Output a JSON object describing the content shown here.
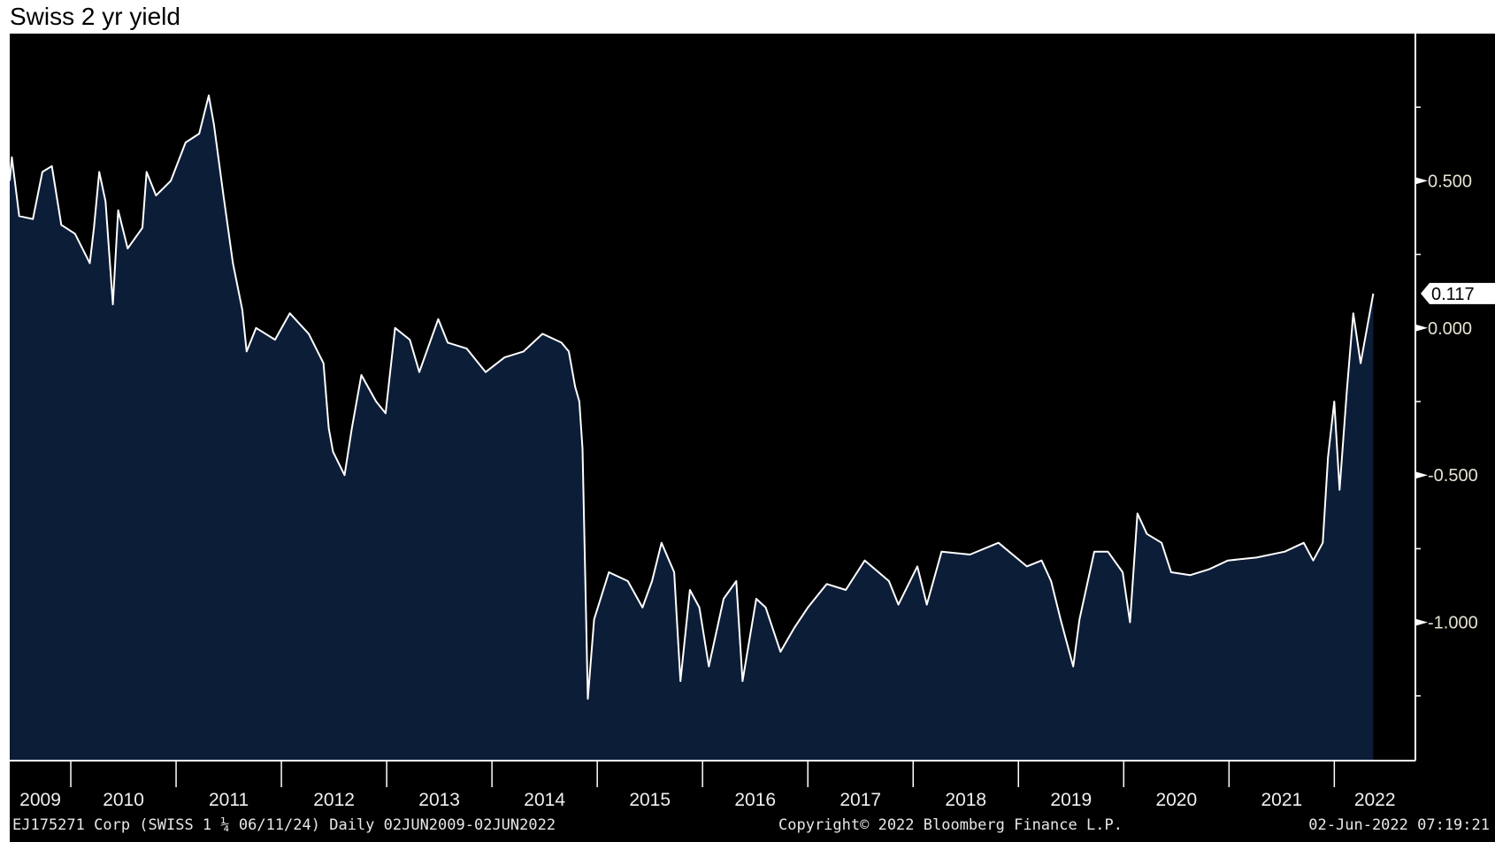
{
  "chart_data": {
    "type": "area",
    "title": "Swiss 2 yr yield",
    "xlabel": "",
    "ylabel": "",
    "xlim": [
      2009.42,
      2022.77
    ],
    "ylim": [
      -1.47,
      1.0
    ],
    "y_ticks": [
      0.5,
      0.0,
      -0.5,
      -1.0
    ],
    "y_tick_labels": [
      "0.500",
      "0.000",
      "-0.500",
      "-1.000"
    ],
    "y_minor_ticks": [
      0.75,
      0.25,
      -0.25,
      -0.75,
      -1.25
    ],
    "x_tick_labels": [
      "2009",
      "2010",
      "2011",
      "2012",
      "2013",
      "2014",
      "2015",
      "2016",
      "2017",
      "2018",
      "2019",
      "2020",
      "2021",
      "2022"
    ],
    "last_value_label": "0.117",
    "last_value": 0.117,
    "grid": false,
    "colors": {
      "background": "#000000",
      "fill": "#0c1d38",
      "line": "#ffffff",
      "last_label_bg": "#ffffff"
    },
    "series": [
      {
        "name": "Swiss 2 yr yield",
        "x": [
          2009.42,
          2009.44,
          2009.51,
          2009.64,
          2009.73,
          2009.82,
          2009.91,
          2010.04,
          2010.18,
          2010.22,
          2010.27,
          2010.33,
          2010.4,
          2010.45,
          2010.54,
          2010.68,
          2010.72,
          2010.81,
          2010.95,
          2011.09,
          2011.22,
          2011.31,
          2011.36,
          2011.45,
          2011.54,
          2011.63,
          2011.67,
          2011.76,
          2011.94,
          2012.08,
          2012.26,
          2012.4,
          2012.45,
          2012.49,
          2012.6,
          2012.67,
          2012.76,
          2012.9,
          2012.99,
          2013.08,
          2013.22,
          2013.31,
          2013.49,
          2013.58,
          2013.76,
          2013.94,
          2014.12,
          2014.3,
          2014.48,
          2014.66,
          2014.73,
          2014.79,
          2014.83,
          2014.86,
          2014.91,
          2014.97,
          2015.11,
          2015.29,
          2015.43,
          2015.52,
          2015.61,
          2015.73,
          2015.79,
          2015.88,
          2015.97,
          2016.06,
          2016.2,
          2016.32,
          2016.38,
          2016.51,
          2016.6,
          2016.74,
          2016.87,
          2017.0,
          2017.18,
          2017.36,
          2017.54,
          2017.77,
          2017.86,
          2018.04,
          2018.13,
          2018.27,
          2018.54,
          2018.81,
          2019.08,
          2019.22,
          2019.31,
          2019.4,
          2019.52,
          2019.58,
          2019.72,
          2019.85,
          2019.99,
          2020.06,
          2020.13,
          2020.22,
          2020.36,
          2020.45,
          2020.63,
          2020.81,
          2020.99,
          2021.26,
          2021.53,
          2021.71,
          2021.8,
          2021.89,
          2021.94,
          2022.0,
          2022.05,
          2022.12,
          2022.18,
          2022.25,
          2022.37
        ],
        "y": [
          0.5,
          0.58,
          0.38,
          0.37,
          0.53,
          0.55,
          0.35,
          0.32,
          0.22,
          0.34,
          0.53,
          0.43,
          0.08,
          0.4,
          0.27,
          0.34,
          0.53,
          0.45,
          0.5,
          0.63,
          0.66,
          0.79,
          0.69,
          0.45,
          0.22,
          0.06,
          -0.08,
          0.0,
          -0.04,
          0.05,
          -0.02,
          -0.12,
          -0.34,
          -0.42,
          -0.5,
          -0.34,
          -0.16,
          -0.25,
          -0.29,
          0.0,
          -0.04,
          -0.15,
          0.03,
          -0.05,
          -0.07,
          -0.15,
          -0.1,
          -0.08,
          -0.02,
          -0.05,
          -0.08,
          -0.2,
          -0.25,
          -0.41,
          -1.26,
          -0.99,
          -0.83,
          -0.86,
          -0.95,
          -0.86,
          -0.73,
          -0.83,
          -1.2,
          -0.89,
          -0.95,
          -1.15,
          -0.92,
          -0.86,
          -1.2,
          -0.92,
          -0.95,
          -1.1,
          -1.02,
          -0.95,
          -0.87,
          -0.89,
          -0.79,
          -0.86,
          -0.94,
          -0.81,
          -0.94,
          -0.76,
          -0.77,
          -0.73,
          -0.81,
          -0.79,
          -0.86,
          -0.99,
          -1.15,
          -0.99,
          -0.76,
          -0.76,
          -0.83,
          -1.0,
          -0.63,
          -0.7,
          -0.73,
          -0.83,
          -0.84,
          -0.82,
          -0.79,
          -0.78,
          -0.76,
          -0.73,
          -0.79,
          -0.73,
          -0.44,
          -0.25,
          -0.55,
          -0.21,
          0.05,
          -0.12,
          0.117
        ]
      }
    ]
  },
  "footer": {
    "security": "EJ175271 Corp (SWISS 1 ¼ 06/11/24)  Daily 02JUN2009-02JUN2022",
    "copyright": "Copyright© 2022 Bloomberg Finance L.P.",
    "timestamp": "02-Jun-2022 07:19:21"
  }
}
